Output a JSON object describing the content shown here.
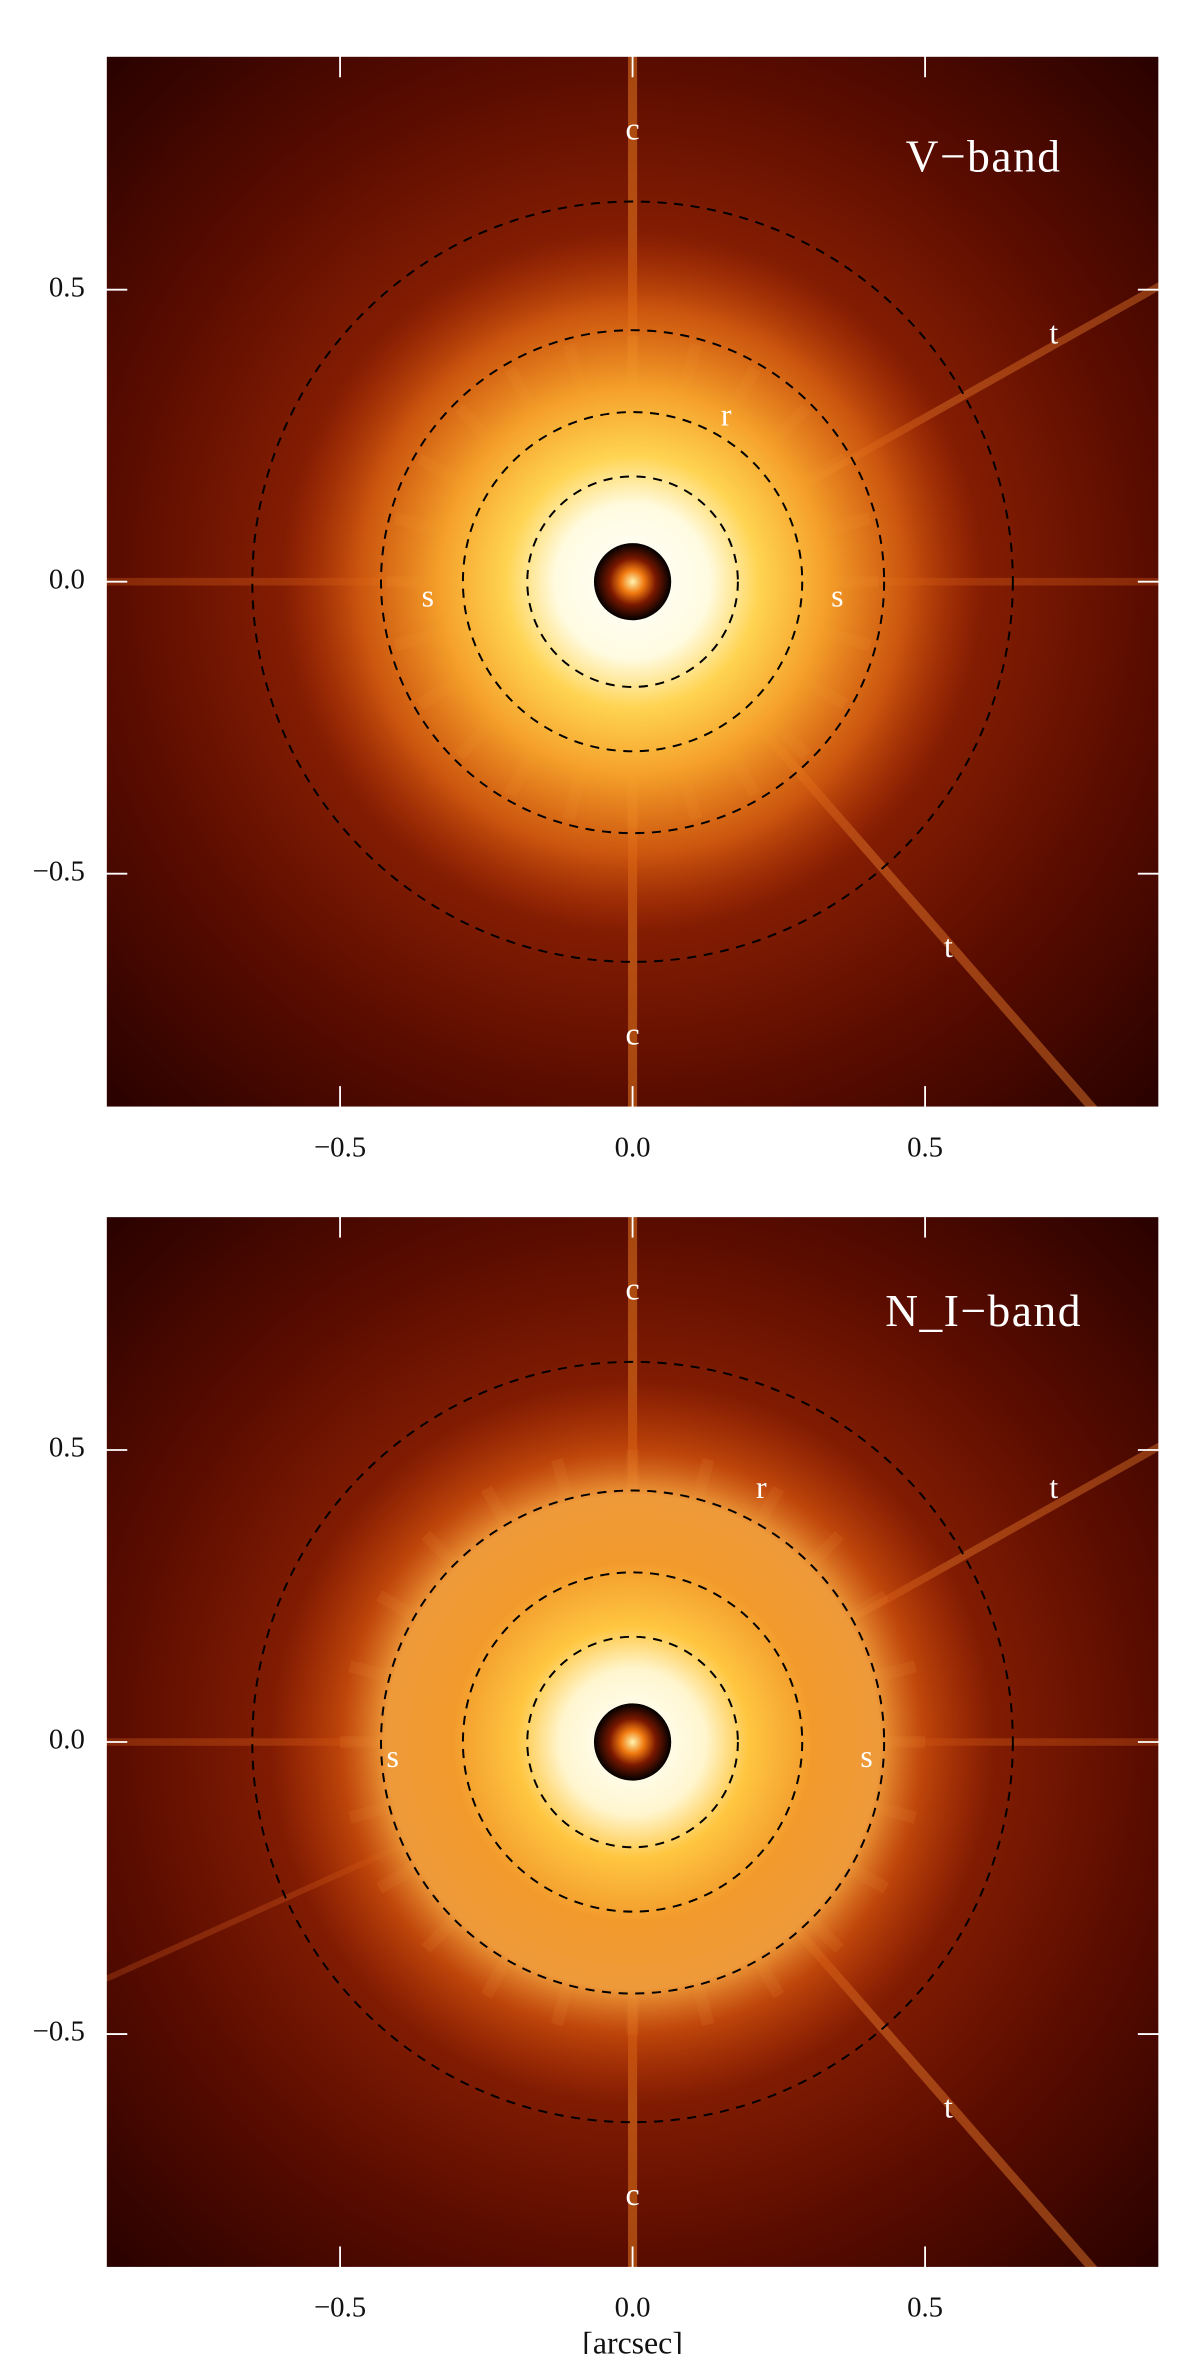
{
  "chart_data": [
    {
      "type": "image",
      "xlim": [
        -0.9,
        0.9
      ],
      "ylim": [
        -0.9,
        0.9
      ],
      "xticks": [
        {
          "value": -0.5,
          "label": "−0.5"
        },
        {
          "value": 0,
          "label": "0.0"
        },
        {
          "value": 0.5,
          "label": "0.5"
        }
      ],
      "yticks": [
        {
          "value": -0.5,
          "label": "−0.5"
        },
        {
          "value": 0,
          "label": "0.0"
        },
        {
          "value": 0.5,
          "label": "0.5"
        }
      ],
      "rings": [
        0.18,
        0.29,
        0.43,
        0.65
      ],
      "annotations": [
        {
          "text": "V−band",
          "x": 0.6,
          "y": 0.72
        },
        {
          "text": "c",
          "x": 0,
          "y": 0.77
        },
        {
          "text": "c",
          "x": 0,
          "y": -0.78
        },
        {
          "text": "r",
          "x": 0.16,
          "y": 0.28
        },
        {
          "text": "s",
          "x": -0.35,
          "y": -0.03
        },
        {
          "text": "s",
          "x": 0.35,
          "y": -0.03
        },
        {
          "text": "t",
          "x": 0.72,
          "y": 0.42
        },
        {
          "text": "t",
          "x": 0.54,
          "y": -0.63
        }
      ]
    },
    {
      "type": "image",
      "xlabel": "[arcsec]",
      "xlim": [
        -0.9,
        0.9
      ],
      "ylim": [
        -0.9,
        0.9
      ],
      "xticks": [
        {
          "value": -0.5,
          "label": "−0.5"
        },
        {
          "value": 0,
          "label": "0.0"
        },
        {
          "value": 0.5,
          "label": "0.5"
        }
      ],
      "yticks": [
        {
          "value": -0.5,
          "label": "−0.5"
        },
        {
          "value": 0,
          "label": "0.0"
        },
        {
          "value": 0.5,
          "label": "0.5"
        }
      ],
      "rings": [
        0.18,
        0.29,
        0.43,
        0.65
      ],
      "annotations": [
        {
          "text": "N_I−band",
          "x": 0.6,
          "y": 0.73
        },
        {
          "text": "c",
          "x": 0,
          "y": 0.77
        },
        {
          "text": "c",
          "x": 0,
          "y": -0.78
        },
        {
          "text": "r",
          "x": 0.22,
          "y": 0.43
        },
        {
          "text": "s",
          "x": -0.41,
          "y": -0.03
        },
        {
          "text": "s",
          "x": 0.4,
          "y": -0.03
        },
        {
          "text": "t",
          "x": 0.72,
          "y": 0.43
        },
        {
          "text": "t",
          "x": 0.54,
          "y": -0.63
        }
      ]
    }
  ]
}
